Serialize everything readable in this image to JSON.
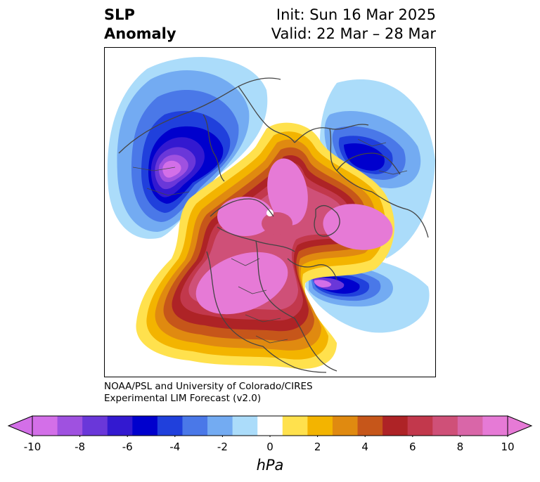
{
  "title": {
    "left_line1": "SLP",
    "left_line2": "Anomaly",
    "right_line1": "Init: Sun 16 Mar 2025",
    "right_line2": "Valid: 22 Mar – 28 Mar"
  },
  "credit": {
    "line1": "NOAA/PSL and University of Colorado/CIRES",
    "line2": "Experimental LIM Forecast (v2.0)"
  },
  "colorbar": {
    "label": "hPa",
    "ticks": [
      "-10",
      "-8",
      "-6",
      "-4",
      "-2",
      "0",
      "2",
      "4",
      "6",
      "8",
      "10"
    ],
    "colors": [
      "#d36fe8",
      "#9f51e0",
      "#6a37d9",
      "#3319d0",
      "#0000cd",
      "#2040dc",
      "#4a78e8",
      "#73abf2",
      "#abdcfa",
      "#ffffff",
      "#ffe14d",
      "#f3b400",
      "#e08a10",
      "#c6561a",
      "#ae2326",
      "#c2384c",
      "#cf5078",
      "#d966a8",
      "#e67ad6"
    ],
    "extend": "both"
  },
  "map": {
    "projection": "north-polar-stereographic",
    "field": "sea-level-pressure-anomaly",
    "colors": {
      "pink": "#e67ad6",
      "magenta": "#cf5078",
      "crimson": "#c2384c",
      "red": "#ae2326",
      "rust": "#c6561a",
      "orange": "#e08a10",
      "gold": "#f3b400",
      "yellow": "#ffe14d",
      "lightblue": "#abdcfa",
      "skyblue": "#73abf2",
      "blue": "#4a78e8",
      "royal": "#2040dc",
      "navy": "#0000cd",
      "indigo": "#3319d0",
      "violet": "#6a37d9",
      "purple": "#9f51e0",
      "orchid": "#d36fe8",
      "coast": "#444444"
    }
  }
}
